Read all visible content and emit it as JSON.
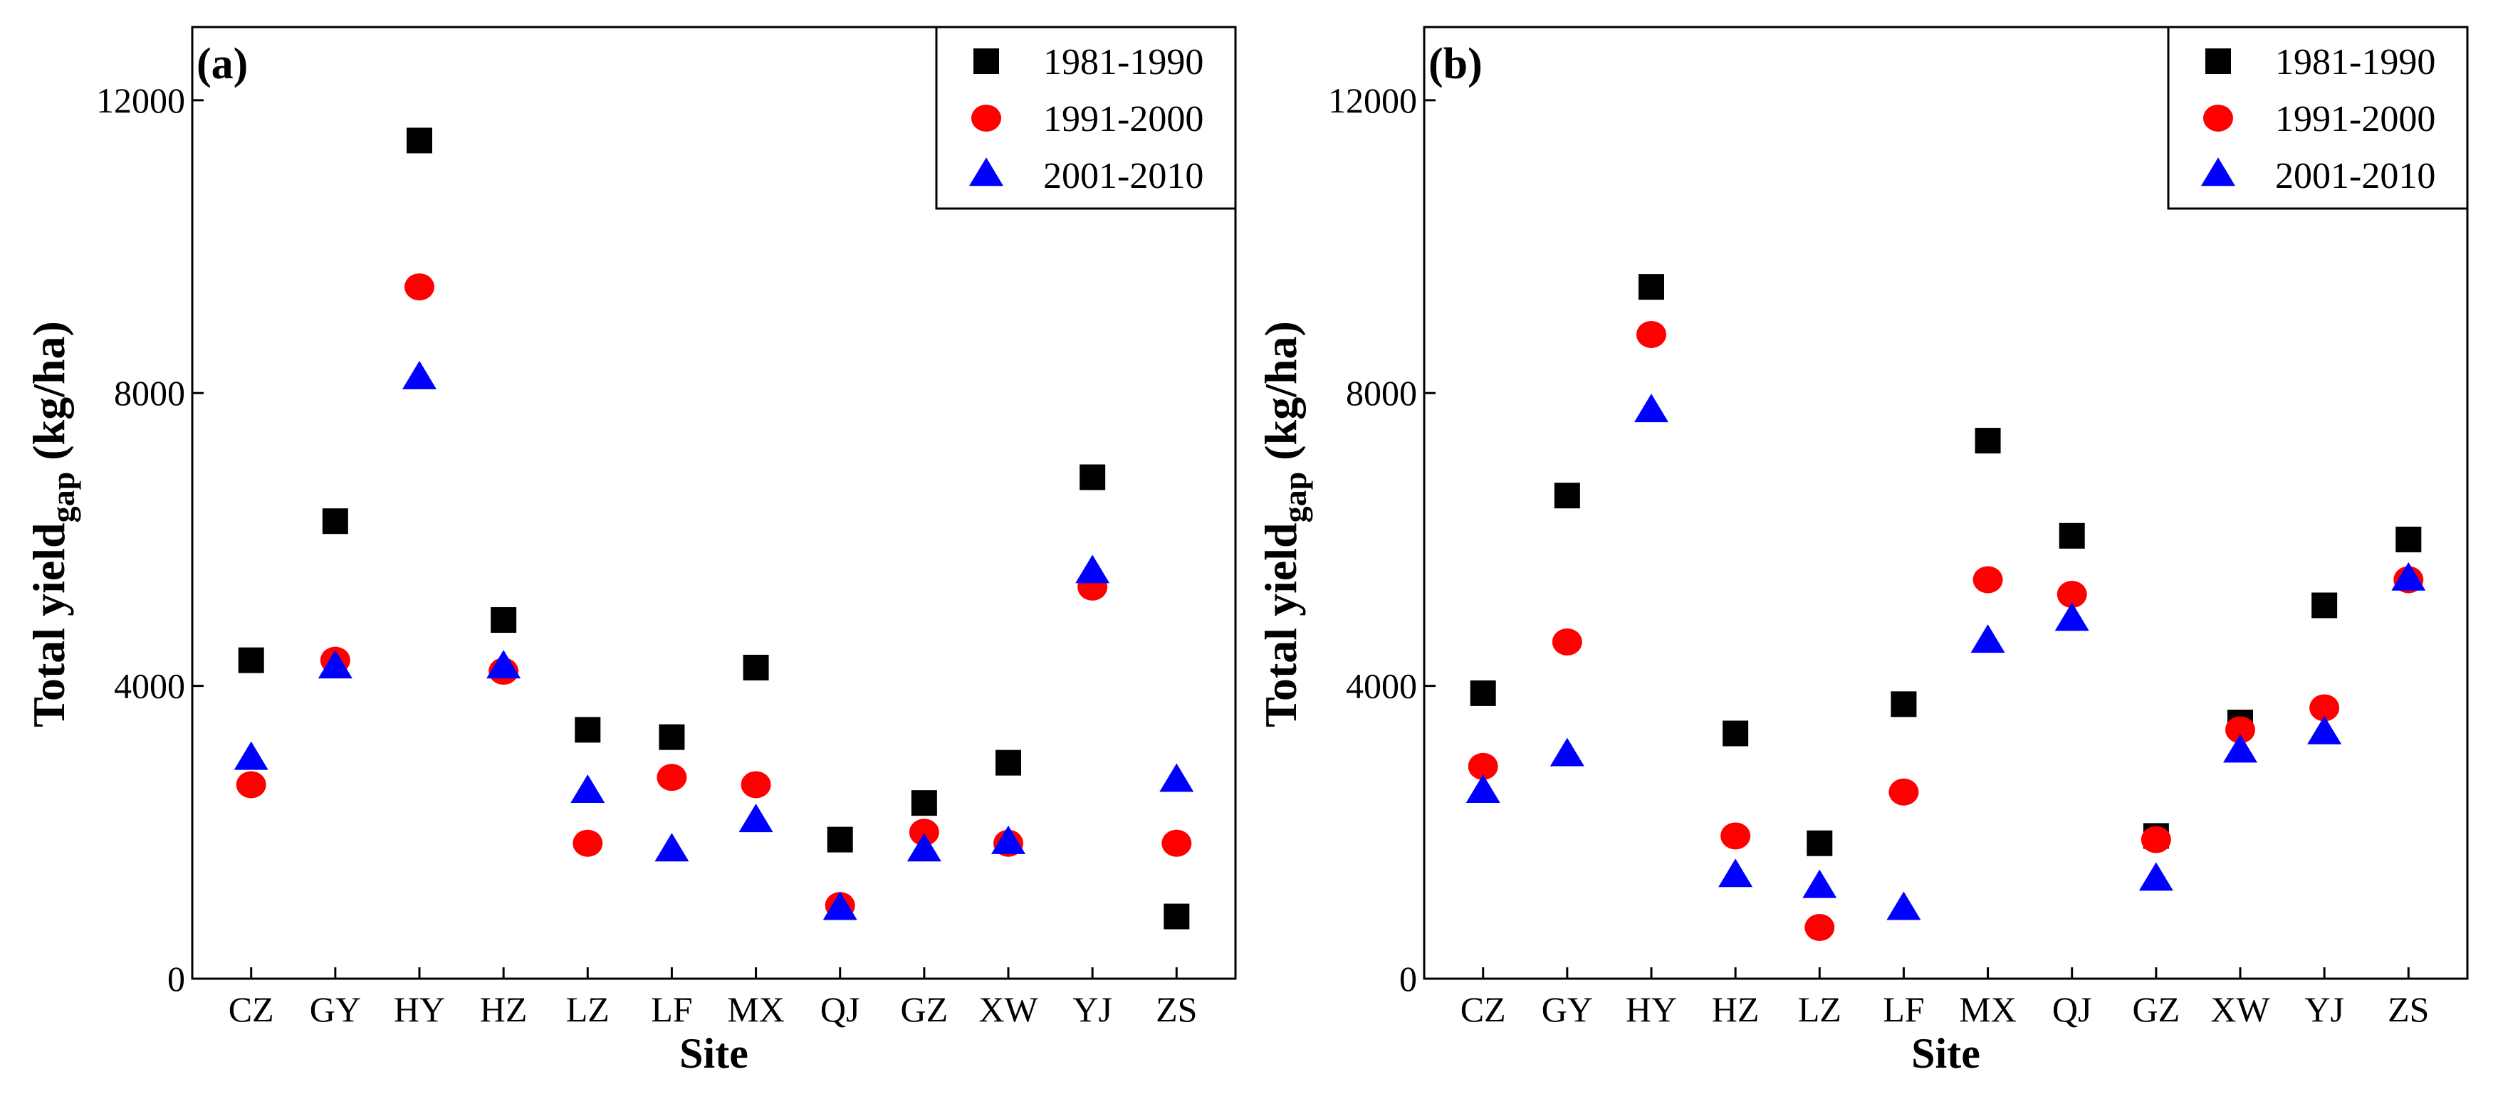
{
  "colors": {
    "series_1981_1990": "#000000",
    "series_1991_2000": "#ff0000",
    "series_2001_2010": "#0000ff"
  },
  "chart_data": [
    {
      "type": "scatter",
      "panel_label": "(a)",
      "xlabel": "Site",
      "ylabel": "Total yield",
      "ylabel_subscript": "gap",
      "ylabel_units": "(kg/ha)",
      "ylim": [
        0,
        13000
      ],
      "yticks": [
        0,
        4000,
        8000,
        12000
      ],
      "categories": [
        "CZ",
        "GY",
        "HY",
        "HZ",
        "LZ",
        "LF",
        "MX",
        "QJ",
        "GZ",
        "XW",
        "YJ",
        "ZS"
      ],
      "legend_position": "top-right",
      "series": [
        {
          "name": "1981-1990",
          "marker": "square",
          "color": "#000000",
          "values": [
            4350,
            6250,
            11450,
            4900,
            3400,
            3300,
            4250,
            1900,
            2400,
            2950,
            6850,
            850
          ]
        },
        {
          "name": "1991-2000",
          "marker": "circle",
          "color": "#ff0000",
          "values": [
            2650,
            4350,
            9450,
            4200,
            1850,
            2750,
            2650,
            1000,
            2000,
            1850,
            5350,
            1850
          ]
        },
        {
          "name": "2001-2010",
          "marker": "triangle",
          "color": "#0000ff",
          "values": [
            3000,
            4250,
            8200,
            4250,
            2550,
            1750,
            2150,
            950,
            1750,
            1850,
            5550,
            2700
          ]
        }
      ]
    },
    {
      "type": "scatter",
      "panel_label": "(b)",
      "xlabel": "Site",
      "ylabel": "Total yield",
      "ylabel_subscript": "gap",
      "ylabel_units": "(kg/ha)",
      "ylim": [
        0,
        13000
      ],
      "yticks": [
        0,
        4000,
        8000,
        12000
      ],
      "categories": [
        "CZ",
        "GY",
        "HY",
        "HZ",
        "LZ",
        "LF",
        "MX",
        "QJ",
        "GZ",
        "XW",
        "YJ",
        "ZS"
      ],
      "legend_position": "top-right",
      "series": [
        {
          "name": "1981-1990",
          "marker": "square",
          "color": "#000000",
          "values": [
            3900,
            6600,
            9450,
            3350,
            1850,
            3750,
            7350,
            6050,
            1950,
            3500,
            5100,
            6000
          ]
        },
        {
          "name": "1991-2000",
          "marker": "circle",
          "color": "#ff0000",
          "values": [
            2900,
            4600,
            8800,
            1950,
            700,
            2550,
            5450,
            5250,
            1900,
            3400,
            3700,
            5450
          ]
        },
        {
          "name": "2001-2010",
          "marker": "triangle",
          "color": "#0000ff",
          "values": [
            2550,
            3050,
            7750,
            1400,
            1250,
            950,
            4600,
            4900,
            1350,
            3100,
            3350,
            5450
          ]
        }
      ]
    }
  ]
}
